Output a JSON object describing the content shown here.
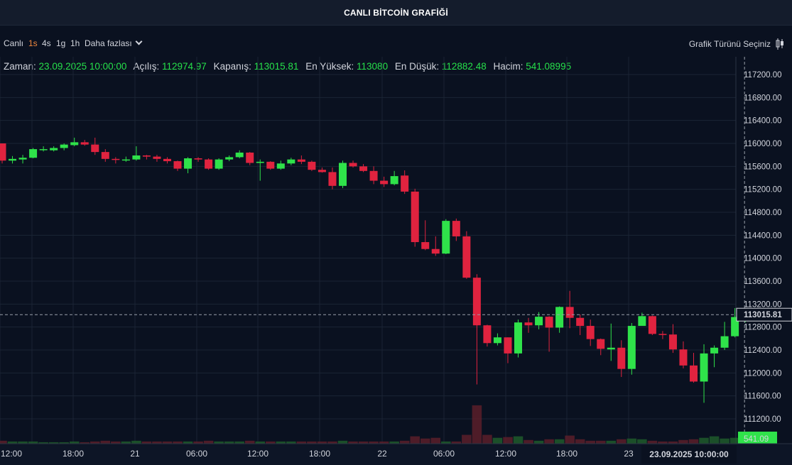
{
  "header": {
    "title": "CANLI BİTCOİN GRAFİĞİ"
  },
  "toolbar": {
    "live_label": "Canlı",
    "timeframes": [
      "1s",
      "4s",
      "1g",
      "1h"
    ],
    "active_timeframe": "1s",
    "more_label": "Daha fazlası",
    "chart_type_label": "Grafik Türünü Seçiniz"
  },
  "legend": {
    "time_label": "Zaman:",
    "time_value": "23.09.2025 10:00:00",
    "open_label": "Açılış:",
    "open_value": "112974.97",
    "close_label": "Kapanış:",
    "close_value": "113015.81",
    "high_label": "En Yüksek:",
    "high_value": "113080",
    "low_label": "En Düşük:",
    "low_value": "112882.48",
    "volume_label": "Hacim:",
    "volume_value": "541.08995"
  },
  "colors": {
    "up": "#2fe24a",
    "down": "#e0233f",
    "background": "#0a1120",
    "grid": "#1b2434",
    "accent": "#f0883e",
    "volume_tag": "#2fe24a"
  },
  "chart_data": {
    "type": "candlestick",
    "interval": "1 hour",
    "ylim": [
      111000,
      117400
    ],
    "y_ticks": [
      "117200.00",
      "116800.00",
      "116400.00",
      "116000.00",
      "115600.00",
      "115200.00",
      "114800.00",
      "114400.00",
      "114000.00",
      "113600.00",
      "113200.00",
      "112800.00",
      "112400.00",
      "112000.00",
      "111600.00",
      "111200.00"
    ],
    "x_ticks": [
      "12:00",
      "18:00",
      "21",
      "06:00",
      "12:00",
      "18:00",
      "22",
      "06:00",
      "12:00",
      "18:00",
      "23"
    ],
    "crosshair_price": "113015.81",
    "crosshair_time": "23.09.2025   10:00:00",
    "volume_label": "541.09",
    "candles": [
      [
        116000,
        115700,
        116000,
        115650
      ],
      [
        115700,
        115730,
        115780,
        115650
      ],
      [
        115720,
        115750,
        115800,
        115650
      ],
      [
        115750,
        115900,
        115920,
        115740
      ],
      [
        115900,
        115900,
        115950,
        115860
      ],
      [
        115880,
        115920,
        115950,
        115860
      ],
      [
        115920,
        115980,
        116000,
        115880
      ],
      [
        115970,
        116020,
        116100,
        115950
      ],
      [
        116020,
        115980,
        116060,
        115960
      ],
      [
        115980,
        115850,
        116100,
        115800
      ],
      [
        115850,
        115730,
        115900,
        115680
      ],
      [
        115730,
        115720,
        115760,
        115650
      ],
      [
        115720,
        115720,
        115770,
        115680
      ],
      [
        115720,
        115790,
        115950,
        115700
      ],
      [
        115790,
        115770,
        115800,
        115720
      ],
      [
        115770,
        115730,
        115800,
        115680
      ],
      [
        115730,
        115690,
        115760,
        115650
      ],
      [
        115690,
        115560,
        115700,
        115520
      ],
      [
        115560,
        115740,
        115760,
        115480
      ],
      [
        115740,
        115720,
        115760,
        115680
      ],
      [
        115720,
        115560,
        115740,
        115540
      ],
      [
        115560,
        115720,
        115740,
        115540
      ],
      [
        115720,
        115760,
        115790,
        115690
      ],
      [
        115760,
        115840,
        115880,
        115740
      ],
      [
        115840,
        115660,
        115850,
        115620
      ],
      [
        115660,
        115680,
        115720,
        115350
      ],
      [
        115680,
        115560,
        115690,
        115540
      ],
      [
        115560,
        115650,
        115700,
        115540
      ],
      [
        115650,
        115720,
        115750,
        115620
      ],
      [
        115720,
        115680,
        115790,
        115640
      ],
      [
        115680,
        115540,
        115700,
        115520
      ],
      [
        115540,
        115500,
        115580,
        115490
      ],
      [
        115500,
        115260,
        115580,
        115200
      ],
      [
        115260,
        115660,
        115700,
        115220
      ],
      [
        115660,
        115600,
        115700,
        115580
      ],
      [
        115600,
        115520,
        115640,
        115500
      ],
      [
        115520,
        115350,
        115600,
        115290
      ],
      [
        115350,
        115290,
        115420,
        115240
      ],
      [
        115290,
        115430,
        115520,
        115270
      ],
      [
        115440,
        115160,
        115530,
        115120
      ],
      [
        115160,
        114280,
        115210,
        114200
      ],
      [
        114280,
        114160,
        114660,
        114140
      ],
      [
        114160,
        114080,
        114380,
        114040
      ],
      [
        114080,
        114650,
        114680,
        114070
      ],
      [
        114650,
        114380,
        114690,
        114300
      ],
      [
        114380,
        113660,
        114470,
        113640
      ],
      [
        113660,
        112830,
        113720,
        111800
      ],
      [
        112830,
        112520,
        112840,
        112460
      ],
      [
        112520,
        112620,
        112690,
        112480
      ],
      [
        112620,
        112340,
        112620,
        112170
      ],
      [
        112340,
        112880,
        112930,
        112270
      ],
      [
        112880,
        112830,
        112960,
        112700
      ],
      [
        112830,
        112980,
        113060,
        112760
      ],
      [
        112980,
        112790,
        112990,
        112370
      ],
      [
        112790,
        113150,
        113160,
        112700
      ],
      [
        113150,
        112960,
        113430,
        112780
      ],
      [
        112960,
        112820,
        113020,
        112660
      ],
      [
        112820,
        112590,
        112930,
        112470
      ],
      [
        112590,
        112420,
        112600,
        112310
      ],
      [
        112410,
        112440,
        112860,
        112210
      ],
      [
        112440,
        112070,
        112570,
        111930
      ],
      [
        112070,
        112820,
        112870,
        111970
      ],
      [
        112820,
        112990,
        113050,
        112830
      ],
      [
        112990,
        112680,
        113000,
        112660
      ],
      [
        112680,
        112670,
        112730,
        112590
      ],
      [
        112670,
        112410,
        112850,
        112350
      ],
      [
        112410,
        112130,
        112550,
        112080
      ],
      [
        112130,
        111850,
        112350,
        111830
      ],
      [
        111850,
        112340,
        112500,
        111480
      ],
      [
        112340,
        112440,
        112480,
        112100
      ],
      [
        112440,
        112640,
        112890,
        112400
      ],
      [
        112640,
        112975,
        113130,
        112620
      ],
      [
        112975,
        113016,
        113080,
        112882
      ]
    ],
    "volumes": [
      4,
      3,
      3,
      3,
      2,
      2,
      2,
      3,
      2,
      3,
      4,
      3,
      3,
      4,
      3,
      3,
      3,
      3,
      3,
      3,
      4,
      3,
      3,
      3,
      4,
      3,
      3,
      3,
      3,
      3,
      3,
      3,
      3,
      4,
      3,
      3,
      3,
      3,
      3,
      4,
      10,
      7,
      8,
      3,
      3,
      12,
      52,
      12,
      8,
      9,
      10,
      5,
      4,
      6,
      6,
      11,
      6,
      4,
      4,
      4,
      6,
      7,
      6,
      4,
      3,
      3,
      5,
      6,
      8,
      10,
      7,
      8,
      12
    ]
  }
}
